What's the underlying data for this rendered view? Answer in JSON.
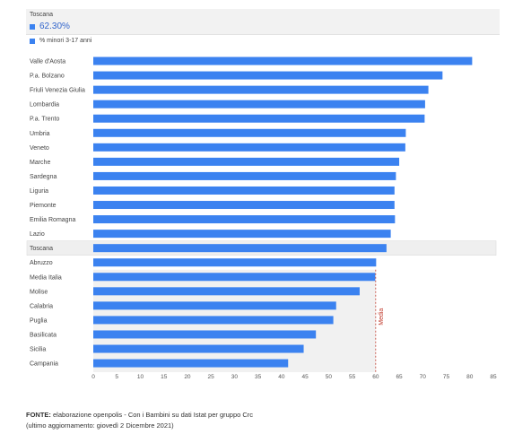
{
  "tooltip": {
    "region": "Toscana",
    "value": "62.30%",
    "color": "#3b82f0"
  },
  "legend": {
    "label": "% minori 3-17 anni"
  },
  "source": {
    "label": "FONTE:",
    "text": "elaborazione openpolis - Con i Bambini su dati Istat per gruppo Crc",
    "updated": "(ultimo aggiornamento: giovedì 2 Dicembre 2021)"
  },
  "chart_data": {
    "type": "bar",
    "orientation": "horizontal",
    "categories": [
      "Valle d'Aosta",
      "P.a. Bolzano",
      "Friuli Venezia Giulia",
      "Lombardia",
      "P.a. Trento",
      "Umbria",
      "Veneto",
      "Marche",
      "Sardegna",
      "Liguria",
      "Piemonte",
      "Emilia Romagna",
      "Lazio",
      "Toscana",
      "Abruzzo",
      "Media Italia",
      "Molise",
      "Calabria",
      "Puglia",
      "Basilicata",
      "Sicilia",
      "Campania"
    ],
    "series": [
      {
        "name": "% minori 3-17 anni",
        "color": "#3b82f0",
        "values": [
          80.5,
          74.2,
          71.2,
          70.5,
          70.4,
          66.4,
          66.3,
          65.0,
          64.3,
          64.0,
          64.0,
          64.1,
          63.2,
          62.3,
          60.1,
          59.9,
          56.6,
          51.6,
          51.0,
          47.3,
          44.7,
          41.4
        ]
      }
    ],
    "xlim": [
      0,
      85
    ],
    "xticks": [
      0,
      5,
      10,
      15,
      20,
      25,
      30,
      35,
      40,
      45,
      50,
      55,
      60,
      65,
      70,
      75,
      80,
      85
    ],
    "highlight": "Toscana",
    "reference_line": {
      "label": "Media",
      "value": 60,
      "color": "#c0392b"
    },
    "grid": false
  }
}
